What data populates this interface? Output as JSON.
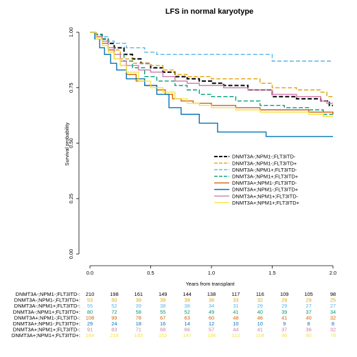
{
  "chart_data": {
    "type": "line",
    "title": "LFS in normal karyotype",
    "xlabel": "Years from transplant",
    "ylabel": "Survival probability",
    "xlim": [
      0,
      2
    ],
    "ylim": [
      0,
      1
    ],
    "x_ticks": [
      "0.0",
      "0.5",
      "1.0",
      "1.5",
      "2.0"
    ],
    "y_ticks": [
      "0.00",
      "0.25",
      "0.50",
      "0.75",
      "1.00"
    ],
    "legend_position": "center-right",
    "risk_times": [
      0,
      0.2,
      0.4,
      0.6,
      0.8,
      1.0,
      1.2,
      1.4,
      1.6,
      1.8,
      2.0
    ],
    "series": [
      {
        "name": "DNMT3A-;NPM1-;FLT3ITD-",
        "color": "#000000",
        "dash": "6,3",
        "width": 2,
        "points": [
          [
            0,
            1
          ],
          [
            0.05,
            0.99
          ],
          [
            0.1,
            0.97
          ],
          [
            0.15,
            0.95
          ],
          [
            0.2,
            0.93
          ],
          [
            0.28,
            0.9
          ],
          [
            0.35,
            0.88
          ],
          [
            0.42,
            0.86
          ],
          [
            0.5,
            0.84
          ],
          [
            0.6,
            0.82
          ],
          [
            0.7,
            0.8
          ],
          [
            0.8,
            0.79
          ],
          [
            0.9,
            0.78
          ],
          [
            1.0,
            0.77
          ],
          [
            1.1,
            0.76
          ],
          [
            1.3,
            0.74
          ],
          [
            1.5,
            0.71
          ],
          [
            1.7,
            0.7
          ],
          [
            1.9,
            0.69
          ],
          [
            1.97,
            0.67
          ],
          [
            2.0,
            0.67
          ]
        ],
        "risk": [
          "210",
          "198",
          "161",
          "149",
          "144",
          "138",
          "117",
          "116",
          "109",
          "105",
          "98"
        ]
      },
      {
        "name": "DNMT3A-;NPM1-;FLT3ITD+",
        "color": "#E69F00",
        "dash": "6,3",
        "width": 1.4,
        "points": [
          [
            0,
            1
          ],
          [
            0.05,
            0.98
          ],
          [
            0.1,
            0.96
          ],
          [
            0.15,
            0.92
          ],
          [
            0.25,
            0.88
          ],
          [
            0.35,
            0.86
          ],
          [
            0.5,
            0.85
          ],
          [
            0.6,
            0.83
          ],
          [
            0.7,
            0.81
          ],
          [
            0.8,
            0.8
          ],
          [
            0.9,
            0.8
          ],
          [
            1.0,
            0.79
          ],
          [
            1.3,
            0.79
          ],
          [
            1.4,
            0.77
          ],
          [
            1.5,
            0.75
          ],
          [
            1.7,
            0.74
          ],
          [
            1.9,
            0.73
          ],
          [
            1.95,
            0.71
          ],
          [
            2.0,
            0.71
          ]
        ],
        "risk": [
          "53",
          "50",
          "39",
          "39",
          "39",
          "36",
          "33",
          "32",
          "29",
          "29",
          "25"
        ]
      },
      {
        "name": "DNMT3A-;NPM1+;FLT3ITD-",
        "color": "#56B4E9",
        "dash": "6,3",
        "width": 1.4,
        "points": [
          [
            0,
            1
          ],
          [
            0.05,
            0.99
          ],
          [
            0.1,
            0.98
          ],
          [
            0.15,
            0.96
          ],
          [
            0.2,
            0.95
          ],
          [
            0.3,
            0.93
          ],
          [
            0.45,
            0.91
          ],
          [
            0.55,
            0.9
          ],
          [
            1.0,
            0.9
          ],
          [
            1.5,
            0.87
          ],
          [
            2.0,
            0.87
          ]
        ],
        "risk": [
          "55",
          "52",
          "39",
          "38",
          "38",
          "34",
          "31",
          "29",
          "29",
          "27",
          "27"
        ]
      },
      {
        "name": "DNMT3A-;NPM1+;FLT3ITD+",
        "color": "#009E73",
        "dash": "6,3",
        "width": 1.4,
        "points": [
          [
            0,
            1
          ],
          [
            0.05,
            0.99
          ],
          [
            0.1,
            0.97
          ],
          [
            0.15,
            0.93
          ],
          [
            0.2,
            0.9
          ],
          [
            0.28,
            0.87
          ],
          [
            0.35,
            0.84
          ],
          [
            0.45,
            0.8
          ],
          [
            0.55,
            0.78
          ],
          [
            0.7,
            0.76
          ],
          [
            0.8,
            0.74
          ],
          [
            0.9,
            0.72
          ],
          [
            1.0,
            0.71
          ],
          [
            1.2,
            0.69
          ],
          [
            1.4,
            0.67
          ],
          [
            1.6,
            0.66
          ],
          [
            1.8,
            0.65
          ],
          [
            1.92,
            0.63
          ],
          [
            2.0,
            0.63
          ]
        ],
        "risk": [
          "80",
          "72",
          "58",
          "55",
          "52",
          "49",
          "41",
          "40",
          "39",
          "37",
          "34"
        ]
      },
      {
        "name": "DNMT3A+;NPM1-;FLT3ITD-",
        "color": "#D55E00",
        "dash": "",
        "width": 1.4,
        "points": [
          [
            0,
            1
          ],
          [
            0.05,
            0.98
          ],
          [
            0.1,
            0.95
          ],
          [
            0.15,
            0.92
          ],
          [
            0.2,
            0.88
          ],
          [
            0.25,
            0.85
          ],
          [
            0.3,
            0.81
          ],
          [
            0.38,
            0.78
          ],
          [
            0.45,
            0.76
          ],
          [
            0.55,
            0.74
          ],
          [
            0.62,
            0.72
          ],
          [
            0.68,
            0.7
          ],
          [
            0.75,
            0.69
          ],
          [
            0.85,
            0.68
          ],
          [
            1.0,
            0.67
          ],
          [
            1.2,
            0.66
          ],
          [
            1.4,
            0.65
          ],
          [
            1.6,
            0.65
          ],
          [
            1.8,
            0.64
          ],
          [
            2.0,
            0.63
          ]
        ],
        "risk": [
          "108",
          "99",
          "78",
          "67",
          "63",
          "60",
          "48",
          "46",
          "41",
          "40",
          "32"
        ]
      },
      {
        "name": "DNMT3A+;NPM1-;FLT3ITD+",
        "color": "#0072B2",
        "dash": "",
        "width": 1.4,
        "points": [
          [
            0,
            1
          ],
          [
            0.04,
            0.97
          ],
          [
            0.08,
            0.93
          ],
          [
            0.12,
            0.9
          ],
          [
            0.17,
            0.86
          ],
          [
            0.22,
            0.83
          ],
          [
            0.3,
            0.79
          ],
          [
            0.45,
            0.76
          ],
          [
            0.55,
            0.72
          ],
          [
            0.65,
            0.66
          ],
          [
            0.75,
            0.63
          ],
          [
            0.9,
            0.59
          ],
          [
            1.0,
            0.59
          ],
          [
            1.05,
            0.55
          ],
          [
            1.2,
            0.55
          ],
          [
            1.45,
            0.53
          ],
          [
            2.0,
            0.53
          ]
        ],
        "risk": [
          "29",
          "24",
          "18",
          "16",
          "14",
          "12",
          "10",
          "10",
          "9",
          "8",
          "8"
        ]
      },
      {
        "name": "DNMT3A+;NPM1+;FLT3ITD-",
        "color": "#CC79A7",
        "dash": "",
        "width": 1.4,
        "points": [
          [
            0,
            1
          ],
          [
            0.05,
            0.98
          ],
          [
            0.1,
            0.96
          ],
          [
            0.15,
            0.93
          ],
          [
            0.2,
            0.9
          ],
          [
            0.25,
            0.87
          ],
          [
            0.3,
            0.85
          ],
          [
            0.4,
            0.83
          ],
          [
            0.5,
            0.82
          ],
          [
            0.6,
            0.8
          ],
          [
            0.7,
            0.78
          ],
          [
            0.8,
            0.77
          ],
          [
            0.9,
            0.76
          ],
          [
            1.0,
            0.76
          ],
          [
            1.1,
            0.75
          ],
          [
            1.3,
            0.74
          ],
          [
            1.5,
            0.72
          ],
          [
            1.7,
            0.71
          ],
          [
            1.9,
            0.69
          ],
          [
            1.95,
            0.68
          ],
          [
            2.0,
            0.68
          ]
        ],
        "risk": [
          "91",
          "83",
          "71",
          "68",
          "66",
          "57",
          "44",
          "41",
          "37",
          "36",
          "32"
        ]
      },
      {
        "name": "DNMT3A+;NPM1+;FLT3ITD+",
        "color": "#F0E442",
        "dash": "",
        "width": 1.4,
        "points": [
          [
            0,
            1
          ],
          [
            0.05,
            0.97
          ],
          [
            0.1,
            0.94
          ],
          [
            0.15,
            0.91
          ],
          [
            0.2,
            0.88
          ],
          [
            0.25,
            0.85
          ],
          [
            0.3,
            0.82
          ],
          [
            0.4,
            0.78
          ],
          [
            0.5,
            0.75
          ],
          [
            0.6,
            0.73
          ],
          [
            0.7,
            0.7
          ],
          [
            0.8,
            0.68
          ],
          [
            0.9,
            0.67
          ],
          [
            1.0,
            0.66
          ],
          [
            1.2,
            0.65
          ],
          [
            1.4,
            0.64
          ],
          [
            1.6,
            0.64
          ],
          [
            1.8,
            0.63
          ],
          [
            1.92,
            0.62
          ],
          [
            2.0,
            0.62
          ]
        ],
        "risk": [
          "244",
          "218",
          "183",
          "152",
          "147",
          "134",
          "112",
          "104",
          "96",
          "90",
          "78"
        ]
      }
    ]
  }
}
